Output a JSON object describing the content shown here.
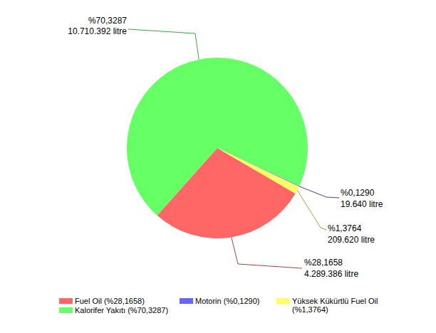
{
  "chart_data": {
    "type": "pie",
    "categories": [
      "Fuel Oil (%28,1658)",
      "Kalorifer Yakıtı (%70,3287)",
      "Motorin (%0,1290)",
      "Yüksek Kükürtlü Fuel Oil (%1,3764)"
    ],
    "values": [
      28.1658,
      70.3287,
      0.129,
      1.3764
    ],
    "value_labels": [
      "%28,1658",
      "%70,3287",
      "%0,1290",
      "%1,3764"
    ],
    "litres": [
      4289386,
      10710392,
      19640,
      209620
    ],
    "litre_labels": [
      "4.289.386 litre",
      "10.710.392 litre",
      "19.640 litre",
      "209.620 litre"
    ],
    "colors": [
      "#ff6666",
      "#66ff66",
      "#6666ff",
      "#ffff66"
    ],
    "data_labels": true,
    "legend": "bottom"
  }
}
